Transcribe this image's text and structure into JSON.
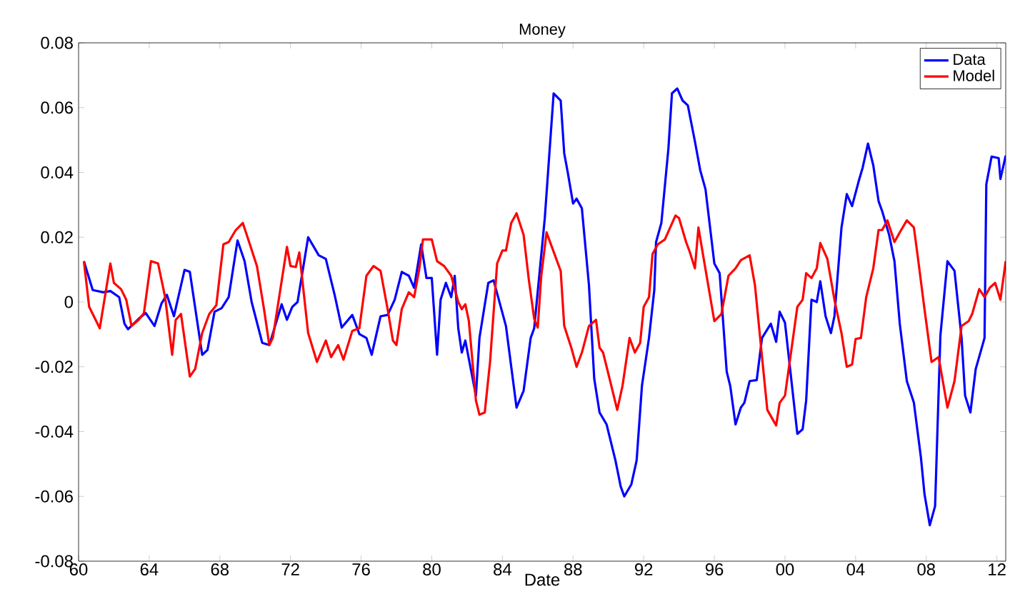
{
  "chart_data": {
    "type": "line",
    "title": "Money",
    "xlabel": "Date",
    "xlim": [
      1960,
      2012.5
    ],
    "ylim": [
      -0.08,
      0.08
    ],
    "xticks": [
      {
        "value": 1960,
        "label": "60"
      },
      {
        "value": 1964,
        "label": "64"
      },
      {
        "value": 1968,
        "label": "68"
      },
      {
        "value": 1972,
        "label": "72"
      },
      {
        "value": 1976,
        "label": "76"
      },
      {
        "value": 1980,
        "label": "80"
      },
      {
        "value": 1984,
        "label": "84"
      },
      {
        "value": 1988,
        "label": "88"
      },
      {
        "value": 1992,
        "label": "92"
      },
      {
        "value": 1996,
        "label": "96"
      },
      {
        "value": 2000,
        "label": "00"
      },
      {
        "value": 2004,
        "label": "04"
      },
      {
        "value": 2008,
        "label": "08"
      },
      {
        "value": 2012,
        "label": "12"
      }
    ],
    "yticks": [
      -0.08,
      -0.06,
      -0.04,
      -0.02,
      0,
      0.02,
      0.04,
      0.06,
      0.08
    ],
    "legend": "top right",
    "grid": false,
    "marker": "none",
    "line_style": "solid",
    "series": [
      {
        "name": "Data",
        "color": "#0000ff",
        "x": [
          1960.3,
          1960.8,
          1961.4,
          1961.8,
          1962.3,
          1962.6,
          1962.8,
          1963.4,
          1963.8,
          1964.3,
          1964.7,
          1965.0,
          1965.4,
          1966.0,
          1966.3,
          1967.0,
          1967.3,
          1967.7,
          1968.1,
          1968.5,
          1969.0,
          1969.4,
          1969.8,
          1970.4,
          1970.8,
          1971.5,
          1971.8,
          1972.1,
          1972.4,
          1973.0,
          1973.6,
          1974.0,
          1974.5,
          1974.9,
          1975.5,
          1975.9,
          1976.3,
          1976.6,
          1977.1,
          1977.5,
          1977.9,
          1978.3,
          1978.7,
          1979.0,
          1979.4,
          1979.7,
          1980.0,
          1980.3,
          1980.5,
          1980.8,
          1981.1,
          1981.3,
          1981.5,
          1981.7,
          1981.9,
          1982.5,
          1982.7,
          1983.2,
          1983.5,
          1984.2,
          1984.8,
          1985.2,
          1985.6,
          1985.8,
          1986.4,
          1986.9,
          1987.3,
          1987.5,
          1987.7,
          1988.0,
          1988.2,
          1988.5,
          1988.9,
          1989.2,
          1989.5,
          1989.9,
          1990.4,
          1990.7,
          1990.9,
          1991.3,
          1991.6,
          1991.9,
          1992.3,
          1992.6,
          1992.7,
          1993.0,
          1993.4,
          1993.6,
          1993.9,
          1994.2,
          1994.5,
          1994.9,
          1995.2,
          1995.5,
          1996.0,
          1996.3,
          1996.7,
          1996.9,
          1997.2,
          1997.5,
          1997.7,
          1998.0,
          1998.4,
          1998.7,
          1999.2,
          1999.5,
          1999.7,
          2000.0,
          2000.7,
          2001.0,
          2001.2,
          2001.5,
          2001.8,
          2002.0,
          2002.3,
          2002.6,
          2002.8,
          2003.2,
          2003.5,
          2003.8,
          2004.2,
          2004.4,
          2004.7,
          2005.0,
          2005.3,
          2005.5,
          2005.9,
          2006.2,
          2006.5,
          2006.9,
          2007.3,
          2007.7,
          2007.9,
          2008.2,
          2008.5,
          2008.8,
          2009.2,
          2009.6,
          2010.0,
          2010.2,
          2010.5,
          2010.8,
          2011.3,
          2011.4,
          2011.7,
          2012.1,
          2012.2,
          2012.5
        ],
        "values": [
          0.0126,
          0.0037,
          0.003,
          0.0034,
          0.0015,
          -0.0067,
          -0.0084,
          -0.0052,
          -0.0034,
          -0.0074,
          -0.0004,
          0.0022,
          -0.0044,
          0.0099,
          0.0093,
          -0.0163,
          -0.0148,
          -0.003,
          -0.0019,
          0.0015,
          0.019,
          0.0126,
          0,
          -0.0126,
          -0.0133,
          -0.0007,
          -0.0055,
          -0.0015,
          0,
          0.02,
          0.0144,
          0.0133,
          0.0022,
          -0.0079,
          -0.004,
          -0.0099,
          -0.0111,
          -0.0163,
          -0.0044,
          -0.004,
          0.0007,
          0.0093,
          0.0081,
          0.0044,
          0.0178,
          0.0074,
          0.0074,
          -0.0163,
          0.0007,
          0.0059,
          0.0015,
          0.0081,
          -0.0081,
          -0.0156,
          -0.0119,
          -0.0289,
          -0.0111,
          0.0059,
          0.0067,
          -0.0074,
          -0.0326,
          -0.0274,
          -0.0111,
          -0.0081,
          0.0259,
          0.0644,
          0.0622,
          0.0459,
          0.04,
          0.0304,
          0.0319,
          0.0289,
          0.0052,
          -0.0237,
          -0.0341,
          -0.0378,
          -0.0489,
          -0.057,
          -0.06,
          -0.0563,
          -0.0489,
          -0.0259,
          -0.0111,
          0.0037,
          0.0185,
          0.0244,
          0.0474,
          0.0644,
          0.0659,
          0.0622,
          0.0607,
          0.0496,
          0.0407,
          0.0348,
          0.0119,
          0.0089,
          -0.0215,
          -0.0259,
          -0.0378,
          -0.0326,
          -0.0311,
          -0.0244,
          -0.0241,
          -0.0111,
          -0.0067,
          -0.0123,
          -0.003,
          -0.0064,
          -0.0407,
          -0.0393,
          -0.0304,
          0.0007,
          0,
          0.0064,
          -0.0044,
          -0.0096,
          -0.0044,
          0.023,
          0.0333,
          0.0296,
          0.0378,
          0.0415,
          0.0489,
          0.0422,
          0.0311,
          0.0281,
          0.0207,
          0.0126,
          -0.0067,
          -0.0244,
          -0.0311,
          -0.0481,
          -0.0593,
          -0.0689,
          -0.063,
          -0.0104,
          0.0126,
          0.0096,
          -0.0111,
          -0.0289,
          -0.0341,
          -0.0207,
          -0.0111,
          0.0363,
          0.0449,
          0.0444,
          0.038,
          0.0452
        ]
      },
      {
        "name": "Model",
        "color": "#ff0000",
        "x": [
          1960.3,
          1960.6,
          1961.2,
          1961.8,
          1962.0,
          1962.4,
          1962.7,
          1963.0,
          1963.4,
          1963.7,
          1964.1,
          1964.5,
          1964.9,
          1965.3,
          1965.5,
          1965.8,
          1966.3,
          1966.6,
          1967.0,
          1967.4,
          1967.8,
          1968.2,
          1968.5,
          1968.9,
          1969.3,
          1969.7,
          1970.1,
          1970.5,
          1970.8,
          1971.0,
          1971.8,
          1972.0,
          1972.3,
          1972.5,
          1973.0,
          1973.5,
          1974.0,
          1974.3,
          1974.7,
          1975.0,
          1975.5,
          1975.9,
          1976.3,
          1976.7,
          1977.1,
          1977.5,
          1977.8,
          1978.0,
          1978.3,
          1978.7,
          1979.0,
          1979.3,
          1979.5,
          1980.0,
          1980.3,
          1980.7,
          1981.1,
          1981.5,
          1981.7,
          1981.9,
          1982.1,
          1982.5,
          1982.7,
          1983.0,
          1983.3,
          1983.7,
          1984.0,
          1984.2,
          1984.5,
          1984.8,
          1985.2,
          1985.5,
          1985.8,
          1986.0,
          1986.2,
          1986.5,
          1986.8,
          1987.3,
          1987.5,
          1987.9,
          1988.2,
          1988.5,
          1988.9,
          1989.3,
          1989.5,
          1989.7,
          1990.1,
          1990.5,
          1990.8,
          1991.2,
          1991.5,
          1991.8,
          1992.0,
          1992.3,
          1992.5,
          1992.8,
          1993.2,
          1993.8,
          1994.0,
          1994.4,
          1994.6,
          1994.9,
          1995.1,
          1995.4,
          1995.7,
          1996.0,
          1996.4,
          1996.8,
          1997.2,
          1997.5,
          1998.0,
          1998.3,
          1998.7,
          1999.0,
          1999.5,
          1999.7,
          2000.0,
          2000.4,
          2000.7,
          2001.0,
          2001.2,
          2001.5,
          2001.8,
          2002.0,
          2002.4,
          2002.8,
          2003.2,
          2003.5,
          2003.8,
          2004.0,
          2004.3,
          2004.6,
          2005.0,
          2005.3,
          2005.5,
          2005.8,
          2006.2,
          2006.5,
          2006.9,
          2007.3,
          2007.5,
          2007.9,
          2008.3,
          2008.7,
          2009.2,
          2009.6,
          2010.0,
          2010.4,
          2010.6,
          2011.0,
          2011.3,
          2011.6,
          2011.9,
          2012.2,
          2012.5
        ],
        "values": [
          0.0126,
          -0.0015,
          -0.0081,
          0.0119,
          0.0059,
          0.004,
          0.0007,
          -0.0074,
          -0.0055,
          -0.0034,
          0.0126,
          0.0119,
          0.0015,
          -0.0163,
          -0.0055,
          -0.0037,
          -0.023,
          -0.0207,
          -0.0096,
          -0.0037,
          -0.001,
          0.0178,
          0.0185,
          0.0222,
          0.0244,
          0.0178,
          0.0111,
          -0.0022,
          -0.0133,
          -0.0111,
          0.017,
          0.0111,
          0.0108,
          0.0153,
          -0.0096,
          -0.0185,
          -0.0119,
          -0.017,
          -0.0133,
          -0.0178,
          -0.0089,
          -0.0081,
          0.0081,
          0.0111,
          0.0096,
          -0.0022,
          -0.0119,
          -0.0133,
          -0.0022,
          0.003,
          0.0015,
          0.0104,
          0.0193,
          0.0193,
          0.0126,
          0.0111,
          0.0081,
          0,
          -0.0022,
          -0.0007,
          -0.0059,
          -0.0304,
          -0.0348,
          -0.0341,
          -0.0185,
          0.0119,
          0.0159,
          0.0159,
          0.0244,
          0.0274,
          0.0207,
          0.0067,
          -0.0052,
          -0.0079,
          0.0081,
          0.0215,
          0.017,
          0.0096,
          -0.0074,
          -0.0141,
          -0.02,
          -0.0156,
          -0.0074,
          -0.0055,
          -0.0141,
          -0.0156,
          -0.0244,
          -0.0333,
          -0.0259,
          -0.0111,
          -0.0156,
          -0.0126,
          -0.0015,
          0.0015,
          0.0148,
          0.0178,
          0.0193,
          0.0267,
          0.0259,
          0.0185,
          0.0156,
          0.0104,
          0.023,
          0.0133,
          0.0037,
          -0.0059,
          -0.0037,
          0.0081,
          0.0104,
          0.0129,
          0.0144,
          0.0052,
          -0.017,
          -0.0333,
          -0.0381,
          -0.0311,
          -0.0289,
          -0.0133,
          -0.0015,
          0.0007,
          0.0089,
          0.0074,
          0.0104,
          0.0182,
          0.0133,
          0.0007,
          -0.0096,
          -0.02,
          -0.0193,
          -0.0114,
          -0.0111,
          0.0015,
          0.0104,
          0.0222,
          0.0222,
          0.0252,
          0.0185,
          0.0215,
          0.0252,
          0.023,
          0.0148,
          -0.0022,
          -0.0185,
          -0.017,
          -0.0326,
          -0.0244,
          -0.0074,
          -0.0059,
          -0.0037,
          0.004,
          0.0015,
          0.0044,
          0.0059,
          0.0007,
          0.0126
        ]
      }
    ]
  }
}
